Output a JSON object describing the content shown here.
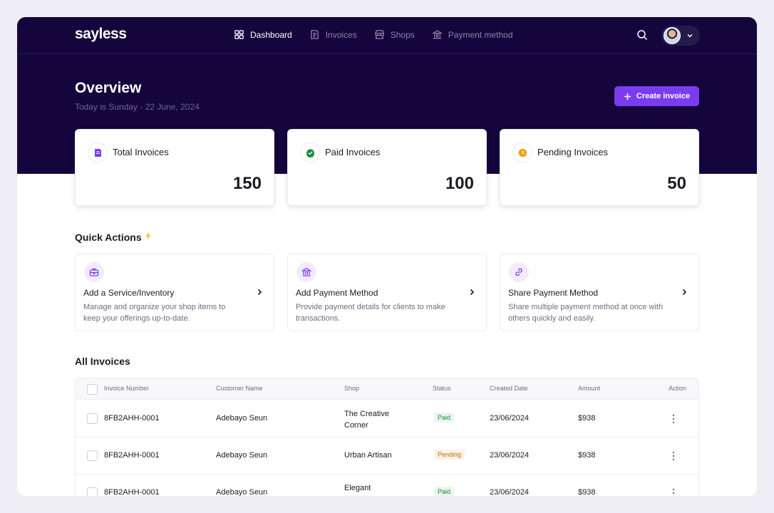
{
  "app": {
    "logo": "sayless"
  },
  "nav": {
    "items": [
      {
        "label": "Dashboard",
        "icon": "grid-icon",
        "active": true
      },
      {
        "label": "Invoices",
        "icon": "invoice-icon",
        "active": false
      },
      {
        "label": "Shops",
        "icon": "shop-icon",
        "active": false
      },
      {
        "label": "Payment method",
        "icon": "bank-icon",
        "active": false
      }
    ]
  },
  "header": {
    "title": "Overview",
    "subtitle": "Today is Sunday - 22 June, 2024",
    "create_label": "Create invoice"
  },
  "stats": [
    {
      "label": "Total Invoices",
      "value": "150",
      "icon": "invoice-icon",
      "color": "#7b3cf0"
    },
    {
      "label": "Paid Invoices",
      "value": "100",
      "icon": "check-badge-icon",
      "color": "#1b8a3c"
    },
    {
      "label": "Pending Invoices",
      "value": "50",
      "icon": "clock-icon",
      "color": "#f0a21c"
    }
  ],
  "quick_actions": {
    "title": "Quick Actions",
    "items": [
      {
        "title": "Add a Service/Inventory",
        "desc": "Manage and organize your shop items to keep your offerings up-to-date.",
        "icon": "bag-icon"
      },
      {
        "title": "Add Payment Method",
        "desc": "Provide payment details for clients to make transactions.",
        "icon": "bank-icon"
      },
      {
        "title": "Share Payment Method",
        "desc": "Share multiple payment method at once with others quickly and easily.",
        "icon": "link-icon"
      }
    ]
  },
  "invoices": {
    "title": "All Invoices",
    "columns": [
      "Invoice Number",
      "Customer Name",
      "Shop",
      "Status",
      "Created Date",
      "Amount",
      "Action"
    ],
    "rows": [
      {
        "number": "8FB2AHH-0001",
        "customer": "Adebayo Seun",
        "shop": "The Creative Corner",
        "status": "Paid",
        "date": "23/06/2024",
        "amount": "$938"
      },
      {
        "number": "8FB2AHH-0001",
        "customer": "Adebayo Seun",
        "shop": "Urban Artisan",
        "status": "Pending",
        "date": "23/06/2024",
        "amount": "$938"
      },
      {
        "number": "8FB2AHH-0001",
        "customer": "Adebayo Seun",
        "shop": "Elegant Essentials",
        "status": "Paid",
        "date": "23/06/2024",
        "amount": "$938"
      }
    ]
  },
  "colors": {
    "hero_bg": "#14063d",
    "accent": "#7b3cf0",
    "paid": "#1b8a3c",
    "pending": "#c46a12"
  }
}
